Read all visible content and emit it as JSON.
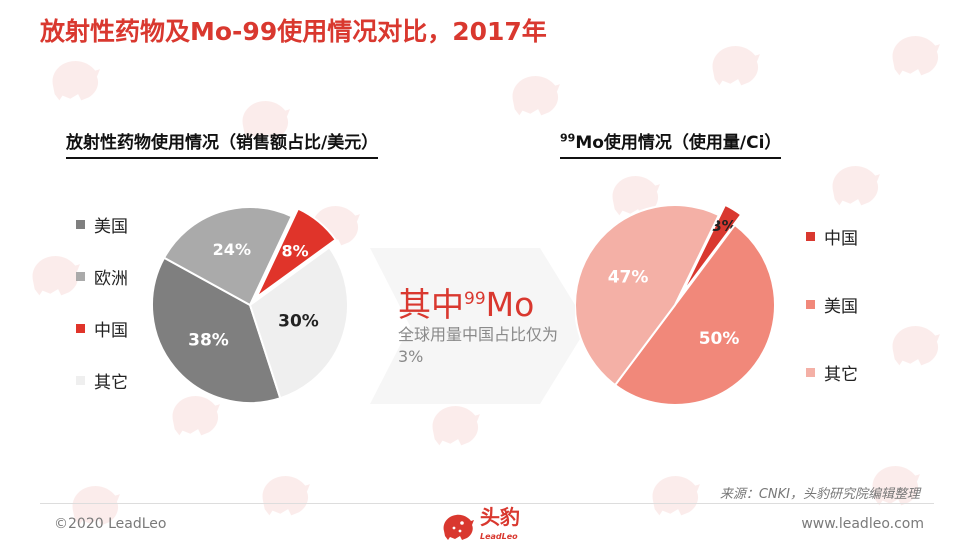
{
  "title": "放射性药物及Mo-99使用情况对比，2017年",
  "left_chart_title": "放射性药物使用情况（销售额占比/美元）",
  "right_chart_title_sup": "99",
  "right_chart_title": "Mo使用情况（使用量/Ci）",
  "callout": {
    "main": "其中",
    "sup": "99",
    "main_suffix": "Mo",
    "sub": "全球用量中国占比仅为3%"
  },
  "source": "来源：CNKI，头豹研究院编辑整理",
  "footer": {
    "copyright": "©2020 LeadLeo",
    "website": "www.leadleo.com",
    "logo_text": "头豹",
    "logo_sub": "LeadLeo"
  },
  "watermark_text": "头豹",
  "colors": {
    "accent": "#d9382f",
    "usa": "#7f7f7f",
    "europe": "#aaaaaa",
    "china": "#e0342a",
    "other": "#efefef",
    "mo_china": "#d9382f",
    "mo_usa": "#f1887a",
    "mo_other": "#f4b0a6"
  },
  "chart_data": [
    {
      "type": "pie",
      "title": "放射性药物使用情况（销售额占比/美元）",
      "legend_position": "left",
      "categories": [
        "美国",
        "欧洲",
        "中国",
        "其它"
      ],
      "values": [
        38,
        24,
        8,
        30
      ],
      "labels": [
        "38%",
        "24%",
        "8%",
        "30%"
      ],
      "exploded": [
        "中国"
      ]
    },
    {
      "type": "pie",
      "title": "99Mo使用情况（使用量/Ci）",
      "legend_position": "right",
      "categories": [
        "中国",
        "美国",
        "其它"
      ],
      "values": [
        3,
        50,
        47
      ],
      "labels": [
        "3%",
        "50%",
        "47%"
      ],
      "exploded": [
        "中国"
      ]
    }
  ]
}
